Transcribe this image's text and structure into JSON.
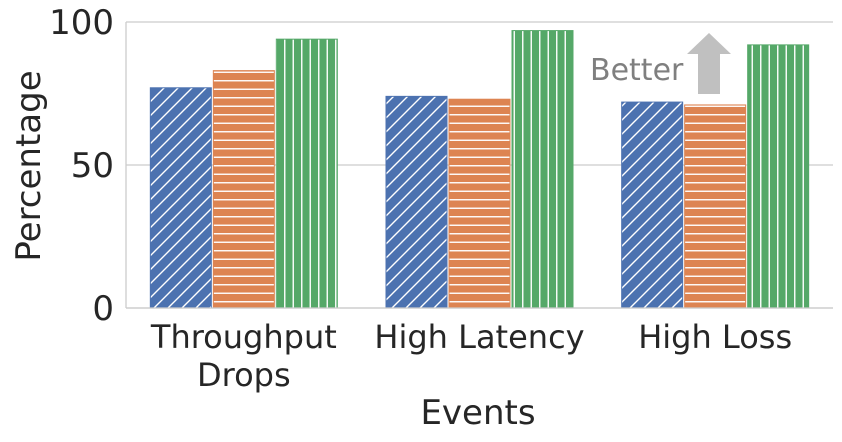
{
  "chart_data": {
    "type": "bar",
    "categories": [
      [
        "Throughput",
        "Drops"
      ],
      [
        "High Latency"
      ],
      [
        "High Loss"
      ]
    ],
    "series": [
      {
        "values": [
          77,
          74,
          72
        ],
        "color": "#4c72b0",
        "pattern": "diagonal-hatch"
      },
      {
        "values": [
          83,
          73,
          71
        ],
        "color": "#dd8452",
        "pattern": "horizontal-hatch"
      },
      {
        "values": [
          94,
          97,
          92
        ],
        "color": "#55a868",
        "pattern": "vertical-hatch"
      }
    ],
    "xlabel": "Events",
    "ylabel": "Percentage",
    "ylim": [
      0,
      100
    ],
    "yticks": [
      "0",
      "50",
      "100"
    ],
    "grid": "horizontal",
    "annotation": {
      "text": "Better",
      "arrow": "up",
      "color": "#c0c0c0"
    }
  }
}
